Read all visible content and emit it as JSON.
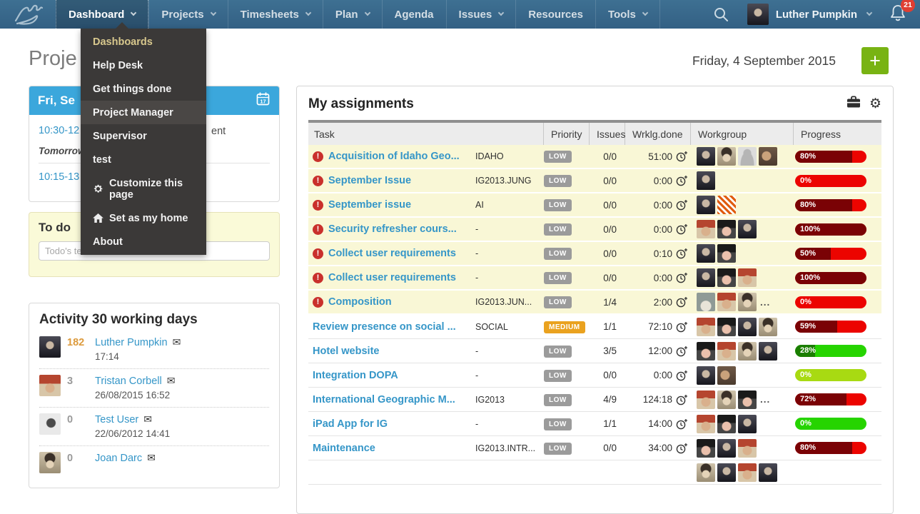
{
  "nav": {
    "items": [
      {
        "label": "Dashboard",
        "caret": true,
        "active": true
      },
      {
        "label": "Projects",
        "caret": true
      },
      {
        "label": "Timesheets",
        "caret": true
      },
      {
        "label": "Plan",
        "caret": true
      },
      {
        "label": "Agenda",
        "caret": false
      },
      {
        "label": "Issues",
        "caret": true
      },
      {
        "label": "Resources",
        "caret": false
      },
      {
        "label": "Tools",
        "caret": true
      }
    ],
    "user_name": "Luther Pumpkin",
    "notification_count": "21"
  },
  "dropdown": {
    "items": [
      {
        "label": "Dashboards",
        "style": "gold"
      },
      {
        "label": "Help Desk"
      },
      {
        "label": "Get things done"
      },
      {
        "label": "Project Manager",
        "highlighted": true
      },
      {
        "label": "Supervisor"
      },
      {
        "label": "test"
      },
      {
        "label": "Customize this page",
        "icon": "gear-icon"
      },
      {
        "label": "Set as my home",
        "icon": "home-icon"
      },
      {
        "label": "About"
      }
    ]
  },
  "page": {
    "title_visible": "Proje",
    "date": "Friday, 4 September 2015",
    "add_button": "+"
  },
  "schedule_card": {
    "header": "Fri, Se",
    "calendar_day": "17",
    "event1_time": "10:30-12",
    "event1_fragment": "ent",
    "tomorrow_label": "Tomorrow",
    "event2_time": "10:15-13"
  },
  "todo_card": {
    "title": "To do",
    "input_placeholder": "Todo's te"
  },
  "activity_card": {
    "title": "Activity 30 working days",
    "rows": [
      {
        "count": "182",
        "hot": true,
        "name": "Luther Pumpkin",
        "time": "17:14",
        "avatar": "av-luther"
      },
      {
        "count": "3",
        "hot": false,
        "name": "Tristan Corbell",
        "time": "26/08/2015 16:52",
        "avatar": "av-tristan"
      },
      {
        "count": "0",
        "hot": false,
        "name": "Test User",
        "time": "22/06/2012 14:41",
        "avatar": "av-grayman"
      },
      {
        "count": "0",
        "hot": false,
        "name": "Joan Darc",
        "time": "",
        "avatar": "av-joan"
      }
    ]
  },
  "assignments": {
    "title": "My assignments",
    "columns": [
      "Task",
      "Priority",
      "Issues",
      "Wrklg.done",
      "Workgroup",
      "Progress"
    ],
    "rows": [
      {
        "alert": true,
        "task": "Acquisition of Idaho Geo...",
        "code": "IDAHO",
        "priority": "LOW",
        "issues": "0/0",
        "worklog": "51:00",
        "avatars": [
          "av-luther",
          "av-joan",
          "av-ph",
          "av-brown"
        ],
        "more": false,
        "progress": 80,
        "bar": "red",
        "bg": "yellow"
      },
      {
        "alert": true,
        "task": "September Issue",
        "code": "IG2013.JUNG",
        "priority": "LOW",
        "issues": "0/0",
        "worklog": "0:00",
        "avatars": [
          "av-luther"
        ],
        "more": false,
        "progress": 0,
        "bar": "red",
        "bg": "yellow"
      },
      {
        "alert": true,
        "task": "September issue",
        "code": "AI",
        "priority": "LOW",
        "issues": "0/0",
        "worklog": "0:00",
        "avatars": [
          "av-luther",
          "av-pattern"
        ],
        "more": false,
        "progress": 80,
        "bar": "red",
        "bg": "yellow"
      },
      {
        "alert": true,
        "task": "Security refresher cours...",
        "code": "-",
        "priority": "LOW",
        "issues": "0/0",
        "worklog": "0:00",
        "avatars": [
          "av-tristan",
          "av-hatwoman",
          "av-luther"
        ],
        "more": false,
        "progress": 100,
        "bar": "red",
        "bg": "yellow"
      },
      {
        "alert": true,
        "task": "Collect user requirements",
        "code": "-",
        "priority": "LOW",
        "issues": "0/0",
        "worklog": "0:10",
        "avatars": [
          "av-luther",
          "av-hatwoman"
        ],
        "more": false,
        "progress": 50,
        "bar": "red",
        "bg": "yellow"
      },
      {
        "alert": true,
        "task": "Collect user requirements",
        "code": "-",
        "priority": "LOW",
        "issues": "0/0",
        "worklog": "0:00",
        "avatars": [
          "av-luther",
          "av-hatwoman",
          "av-tristan"
        ],
        "more": false,
        "progress": 100,
        "bar": "red",
        "bg": "yellow"
      },
      {
        "alert": true,
        "task": "Composition",
        "code": "IG2013.JUN...",
        "priority": "LOW",
        "issues": "1/4",
        "worklog": "2:00",
        "avatars": [
          "av-totoro",
          "av-tristan",
          "av-joan"
        ],
        "more": true,
        "progress": 0,
        "bar": "red",
        "bg": "yellow"
      },
      {
        "alert": false,
        "task": "Review presence on social ...",
        "code": "SOCIAL",
        "priority": "MEDIUM",
        "issues": "1/1",
        "worklog": "72:10",
        "avatars": [
          "av-tristan",
          "av-hatwoman",
          "av-luther",
          "av-joan"
        ],
        "more": false,
        "progress": 59,
        "bar": "red",
        "bg": "white"
      },
      {
        "alert": false,
        "task": "Hotel website",
        "code": "-",
        "priority": "LOW",
        "issues": "3/5",
        "worklog": "12:00",
        "avatars": [
          "av-hatwoman",
          "av-tristan",
          "av-joan",
          "av-luther"
        ],
        "more": false,
        "progress": 28,
        "bar": "green",
        "bg": "white"
      },
      {
        "alert": false,
        "task": "Integration DOPA",
        "code": "-",
        "priority": "LOW",
        "issues": "0/0",
        "worklog": "0:00",
        "avatars": [
          "av-luther",
          "av-brown"
        ],
        "more": false,
        "progress": 0,
        "bar": "chartreuse",
        "bg": "white"
      },
      {
        "alert": false,
        "task": "International Geographic M...",
        "code": "IG2013",
        "priority": "LOW",
        "issues": "4/9",
        "worklog": "124:18",
        "avatars": [
          "av-tristan",
          "av-joan",
          "av-hatwoman"
        ],
        "more": true,
        "progress": 72,
        "bar": "red",
        "bg": "white"
      },
      {
        "alert": false,
        "task": "iPad App for IG",
        "code": "-",
        "priority": "LOW",
        "issues": "1/1",
        "worklog": "14:00",
        "avatars": [
          "av-tristan",
          "av-hatwoman",
          "av-luther"
        ],
        "more": false,
        "progress": 0,
        "bar": "green",
        "bg": "white"
      },
      {
        "alert": false,
        "task": "Maintenance",
        "code": "IG2013.INTR...",
        "priority": "LOW",
        "issues": "0/0",
        "worklog": "34:00",
        "avatars": [
          "av-hatwoman",
          "av-luther",
          "av-tristan"
        ],
        "more": false,
        "progress": 80,
        "bar": "red",
        "bg": "white"
      },
      {
        "partial": true,
        "avatars": [
          "av-joan",
          "av-luther",
          "av-tristan",
          "av-luther"
        ]
      }
    ]
  }
}
